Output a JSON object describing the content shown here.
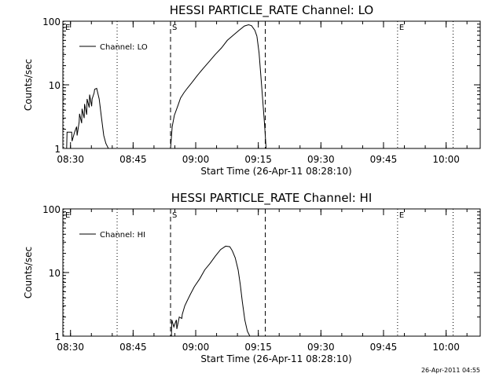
{
  "footer": {
    "timestamp": "26-Apr-2011 04:55"
  },
  "chart_data": [
    {
      "type": "line",
      "title": "HESSI PARTICLE_RATE Channel: LO",
      "xlabel": "Start Time (26-Apr-11 08:28:10)",
      "ylabel": "Counts/sec",
      "x_unit": "minutes after 08:28:10",
      "xlim": [
        0,
        100
      ],
      "ylim": [
        1,
        100
      ],
      "yscale": "log",
      "x_ticks": [
        {
          "label": "08:30",
          "value": 1.83
        },
        {
          "label": "08:45",
          "value": 16.83
        },
        {
          "label": "09:00",
          "value": 31.83
        },
        {
          "label": "09:15",
          "value": 46.83
        },
        {
          "label": "09:30",
          "value": 61.83
        },
        {
          "label": "09:45",
          "value": 76.83
        },
        {
          "label": "10:00",
          "value": 91.83
        }
      ],
      "y_ticks": [
        {
          "label": "1",
          "value": 1
        },
        {
          "label": "10",
          "value": 10
        },
        {
          "label": "100",
          "value": 100
        }
      ],
      "legend": {
        "label": "Channel: LO",
        "position": "top-left"
      },
      "markers": [
        {
          "label": "E",
          "x": 0.2,
          "style": "dotted"
        },
        {
          "label": "",
          "x": 13.0,
          "style": "dotted"
        },
        {
          "label": "S",
          "x": 25.8,
          "style": "dashed"
        },
        {
          "label": "",
          "x": 48.5,
          "style": "dashed"
        },
        {
          "label": "E",
          "x": 80.2,
          "style": "dotted"
        },
        {
          "label": "",
          "x": 93.5,
          "style": "dotted"
        }
      ],
      "series": [
        {
          "x": [
            0.9,
            1.0,
            1.5,
            2.1,
            2.2,
            2.8,
            3.3,
            3.4,
            3.9,
            4.0,
            4.5,
            4.6,
            5.1,
            5.2,
            5.7,
            5.8,
            6.3,
            6.4,
            6.9,
            7.0,
            7.5,
            7.6,
            8.1,
            8.7,
            9.2,
            9.8,
            10.3,
            10.9,
            11.4
          ],
          "y": [
            1,
            1.8,
            1.8,
            1.8,
            1.3,
            1.8,
            2.2,
            1.6,
            2.6,
            3.5,
            2.5,
            4.2,
            3.0,
            5.0,
            3.4,
            6.0,
            4.4,
            7.0,
            4.6,
            6.0,
            7.5,
            8.5,
            8.8,
            6.0,
            3.2,
            1.6,
            1.2,
            1,
            1
          ]
        },
        {
          "x": [
            25.8,
            26.2,
            26.7,
            27.6,
            28.2,
            29.0,
            29.8,
            31.0,
            32.2,
            33.6,
            35.0,
            36.5,
            38.0,
            39.4,
            40.8,
            42.2,
            43.5,
            44.5,
            45.2,
            46.0,
            46.5
          ],
          "y": [
            1,
            2.2,
            3.3,
            4.8,
            6.2,
            7.5,
            8.8,
            11,
            14,
            18,
            23,
            30,
            38,
            50,
            60,
            72,
            84,
            88,
            85,
            72,
            58
          ]
        },
        {
          "x": [
            46.5,
            47.0,
            47.6,
            48.3,
            48.7
          ],
          "y": [
            58,
            32,
            10,
            2.5,
            1
          ]
        }
      ]
    },
    {
      "type": "line",
      "title": "HESSI PARTICLE_RATE Channel: HI",
      "xlabel": "Start Time (26-Apr-11 08:28:10)",
      "ylabel": "Counts/sec",
      "x_unit": "minutes after 08:28:10",
      "xlim": [
        0,
        100
      ],
      "ylim": [
        1,
        100
      ],
      "yscale": "log",
      "x_ticks": [
        {
          "label": "08:30",
          "value": 1.83
        },
        {
          "label": "08:45",
          "value": 16.83
        },
        {
          "label": "09:00",
          "value": 31.83
        },
        {
          "label": "09:15",
          "value": 46.83
        },
        {
          "label": "09:30",
          "value": 61.83
        },
        {
          "label": "09:45",
          "value": 76.83
        },
        {
          "label": "10:00",
          "value": 91.83
        }
      ],
      "y_ticks": [
        {
          "label": "1",
          "value": 1
        },
        {
          "label": "10",
          "value": 10
        },
        {
          "label": "100",
          "value": 100
        }
      ],
      "legend": {
        "label": "Channel: HI",
        "position": "top-left"
      },
      "markers": [
        {
          "label": "E",
          "x": 0.2,
          "style": "dotted"
        },
        {
          "label": "",
          "x": 13.0,
          "style": "dotted"
        },
        {
          "label": "S",
          "x": 25.8,
          "style": "dashed"
        },
        {
          "label": "",
          "x": 48.5,
          "style": "dashed"
        },
        {
          "label": "E",
          "x": 80.2,
          "style": "dotted"
        },
        {
          "label": "",
          "x": 93.5,
          "style": "dotted"
        }
      ],
      "series": [
        {
          "x": [
            26.0,
            26.1,
            26.6,
            27.2,
            27.3,
            27.9,
            28.5,
            28.6,
            29.2,
            29.8,
            30.5,
            31.5,
            32.8,
            34.0,
            35.3,
            36.5,
            37.8,
            39.0,
            40.0,
            40.6,
            41.3,
            42.0,
            42.5,
            43.0,
            43.6,
            44.2,
            44.8
          ],
          "y": [
            1,
            1.8,
            1.4,
            1.8,
            1.3,
            2.0,
            1.9,
            2.2,
            3.0,
            3.6,
            4.5,
            6.0,
            8.0,
            11,
            14,
            18,
            23,
            26,
            25.5,
            22,
            17,
            11,
            6.5,
            3.5,
            1.8,
            1.2,
            1
          ]
        }
      ]
    }
  ]
}
